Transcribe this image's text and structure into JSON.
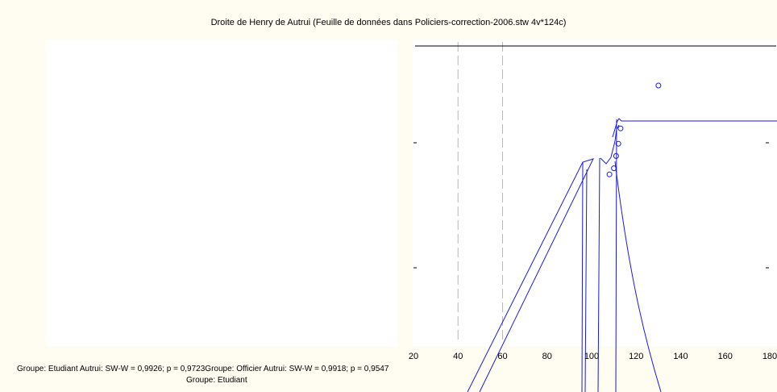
{
  "title": "Droite de Henry de Autrui (Feuille de données dans Policiers-correction-2006.stw 4v*124c)",
  "footer": {
    "line1": "Groupe: Etudiant  Autrui:  SW-W = 0,9926; p = 0,9723Groupe: Officier  Autrui:  SW-W = 0,9918; p = 0,9547",
    "line2": "Groupe: Etudiant"
  },
  "colors": {
    "series": "#1a1adc",
    "grid": "#b8b8b8",
    "background": "#fffcf2"
  },
  "chart_data": {
    "type": "scatter",
    "title": "Droite de Henry de Autrui (Feuille de données dans Policiers-correction-2006.stw 4v*124c)",
    "xlabel": "",
    "ylabel": "",
    "xlim": [
      20,
      180
    ],
    "x_ticks": [
      20,
      40,
      60,
      80,
      100,
      120,
      140,
      160,
      180
    ],
    "tick_labels": [
      "20",
      "40",
      "60",
      "80",
      "100",
      "120",
      "140",
      "160",
      "180"
    ],
    "grid_x": [
      40,
      60
    ],
    "series": [
      {
        "values": [
          {
            "x": 108,
            "y": 0.56
          },
          {
            "x": 110,
            "y": 0.58
          },
          {
            "x": 111,
            "y": 0.62
          },
          {
            "x": 112,
            "y": 0.66
          },
          {
            "x": 113,
            "y": 0.71
          },
          {
            "x": 130,
            "y": 0.85
          }
        ]
      }
    ],
    "footer": [
      "Groupe: Etudiant  Autrui:  SW-W = 0,9926; p = 0,9723Groupe: Officier  Autrui:  SW-W = 0,9918; p = 0,9547",
      "Groupe: Etudiant"
    ]
  }
}
